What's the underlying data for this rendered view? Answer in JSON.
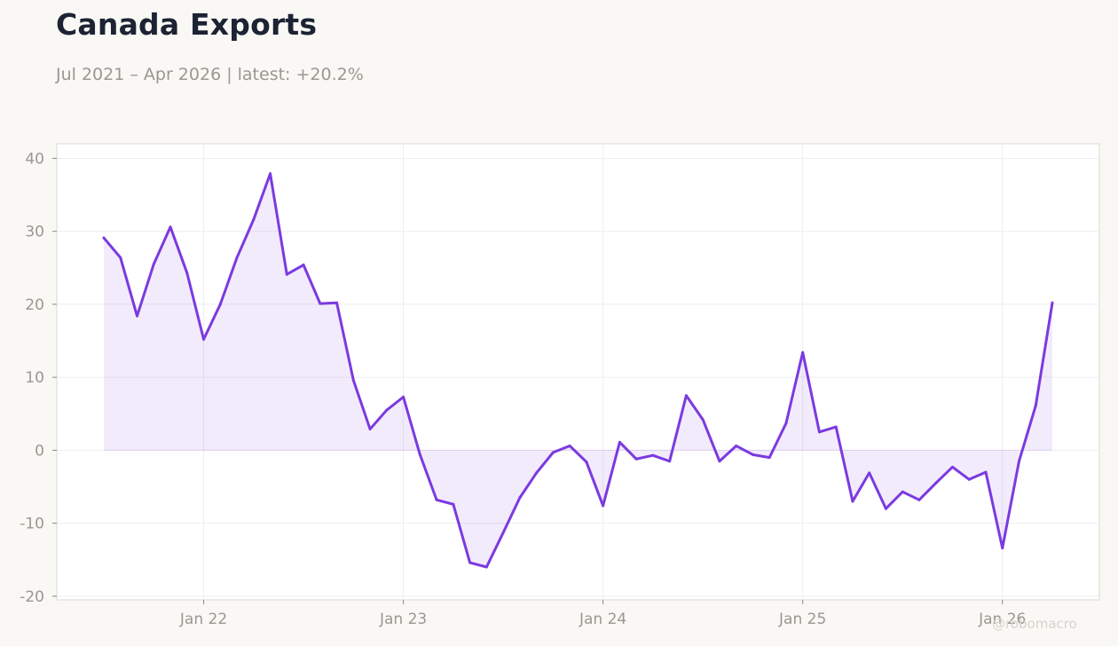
{
  "header": {
    "title": "Canada Exports",
    "subtitle": "Jul 2021 – Apr 2026 | latest: +20.2%"
  },
  "watermark": "@robomacro",
  "colors": {
    "line": "#7b3ae0",
    "fill": "#7b3ae0",
    "background": "#f9f8f5",
    "plot_background": "#ffffff",
    "grid": "#eeeeee",
    "tick_text": "#9a9791"
  },
  "chart_data": {
    "type": "area",
    "title": "Canada Exports",
    "subtitle": "Jul 2021 – Apr 2026 | latest: +20.2%",
    "xlabel": "",
    "ylabel": "",
    "x_start": "2021-07",
    "x_end": "2026-04",
    "ylim": [
      -20.5,
      42
    ],
    "yticks": [
      -20,
      -10,
      0,
      10,
      20,
      30,
      40
    ],
    "ytick_labels": [
      "-20",
      "-10",
      "0",
      "10",
      "20",
      "30",
      "40"
    ],
    "xticks": [
      "2022-01",
      "2023-01",
      "2024-01",
      "2025-01",
      "2026-01"
    ],
    "xtick_labels": [
      "Jan 22",
      "Jan 23",
      "Jan 24",
      "Jan 25",
      "Jan 26"
    ],
    "grid": true,
    "legend": "none",
    "series": [
      {
        "x": [
          "2021-07",
          "2021-08",
          "2021-09",
          "2021-10",
          "2021-11",
          "2021-12",
          "2022-01",
          "2022-02",
          "2022-03",
          "2022-04",
          "2022-05",
          "2022-06",
          "2022-07",
          "2022-08",
          "2022-09",
          "2022-10",
          "2022-11",
          "2022-12",
          "2023-01",
          "2023-02",
          "2023-03",
          "2023-04",
          "2023-05",
          "2023-06",
          "2023-07",
          "2023-08",
          "2023-09",
          "2023-10",
          "2023-11",
          "2023-12",
          "2024-01",
          "2024-02",
          "2024-03",
          "2024-04",
          "2024-05",
          "2024-06",
          "2024-07",
          "2024-08",
          "2024-09",
          "2024-10",
          "2024-11",
          "2024-12",
          "2025-01",
          "2025-02",
          "2025-03",
          "2025-04",
          "2025-05",
          "2025-06",
          "2025-07",
          "2025-08",
          "2025-09",
          "2025-10",
          "2025-11",
          "2025-12",
          "2026-01",
          "2026-02",
          "2026-03",
          "2026-04"
        ],
        "values": [
          29.1,
          26.4,
          18.4,
          25.5,
          30.6,
          24.3,
          15.2,
          20.0,
          26.4,
          31.6,
          37.9,
          24.1,
          25.4,
          20.1,
          20.2,
          9.6,
          2.9,
          5.5,
          7.3,
          -0.6,
          -6.8,
          -7.4,
          -15.4,
          -16.0,
          -11.3,
          -6.5,
          -3.1,
          -0.3,
          0.6,
          -1.6,
          -7.6,
          1.1,
          -1.2,
          -0.7,
          -1.5,
          7.5,
          4.2,
          -1.5,
          0.6,
          -0.6,
          -1.0,
          3.7,
          13.4,
          2.5,
          3.2,
          -7.0,
          -3.1,
          -8.0,
          -5.7,
          -6.8,
          -4.5,
          -2.3,
          -4.0,
          -3.0,
          -13.4,
          -1.5,
          6.1,
          20.2
        ]
      }
    ]
  }
}
